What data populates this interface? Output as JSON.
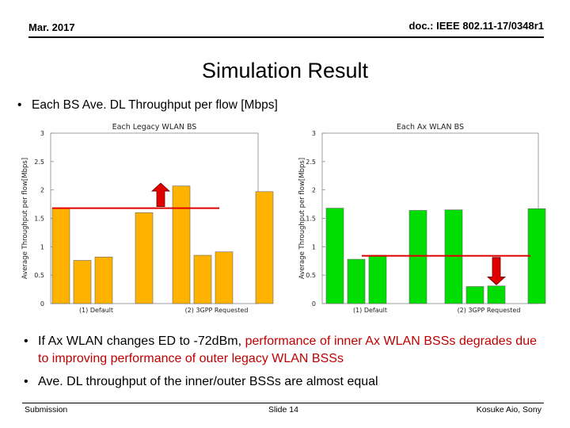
{
  "header": {
    "date": "Mar. 2017",
    "doc_id": "doc.: IEEE 802.11-17/0348r1"
  },
  "title": "Simulation Result",
  "bullet1": "Each BS Ave. DL Throughput per flow [Mbps]",
  "bullet2": {
    "prefix": "If Ax WLAN changes ED to -72dBm, ",
    "highlight": "performance of inner Ax WLAN BSSs degrades due to improving performance of outer legacy WLAN BSSs"
  },
  "bullet3": "Ave. DL throughput of the inner/outer BSSs are almost equal",
  "footer": {
    "left": "Submission",
    "center": "Slide 14",
    "right": "Kosuke Aio, Sony"
  },
  "colors": {
    "legacy": "#FFB300",
    "ax": "#00DD00",
    "arrow": "#E00000",
    "reference_line": "#E00000"
  },
  "chart_data": [
    {
      "type": "bar",
      "title": "Each Legacy WLAN BS",
      "ylabel": "Average Throughput per flow[Mbps]",
      "ylim": [
        0,
        3
      ],
      "yticks": [
        "0",
        "0.5",
        "1",
        "1.5",
        "2",
        "2.5",
        "3"
      ],
      "groups": [
        {
          "label": "(1) Default",
          "values": [
            1.68,
            0.76,
            0.82,
            1.6
          ]
        },
        {
          "label": "(2) 3GPP Requested",
          "values": [
            2.07,
            0.85,
            0.91,
            1.97
          ]
        }
      ],
      "reference_line": 1.68,
      "arrow": "up"
    },
    {
      "type": "bar",
      "title": "Each Ax WLAN BS",
      "ylabel": "Average Throughput per flow[Mbps]",
      "ylim": [
        0,
        3
      ],
      "yticks": [
        "0",
        "0.5",
        "1",
        "1.5",
        "2",
        "2.5",
        "3"
      ],
      "groups": [
        {
          "label": "(1) Default",
          "values": [
            1.68,
            0.78,
            0.85,
            1.64
          ]
        },
        {
          "label": "(2) 3GPP Requested",
          "values": [
            1.65,
            0.3,
            0.31,
            1.67
          ]
        }
      ],
      "reference_line": 0.84,
      "arrow": "down"
    }
  ]
}
